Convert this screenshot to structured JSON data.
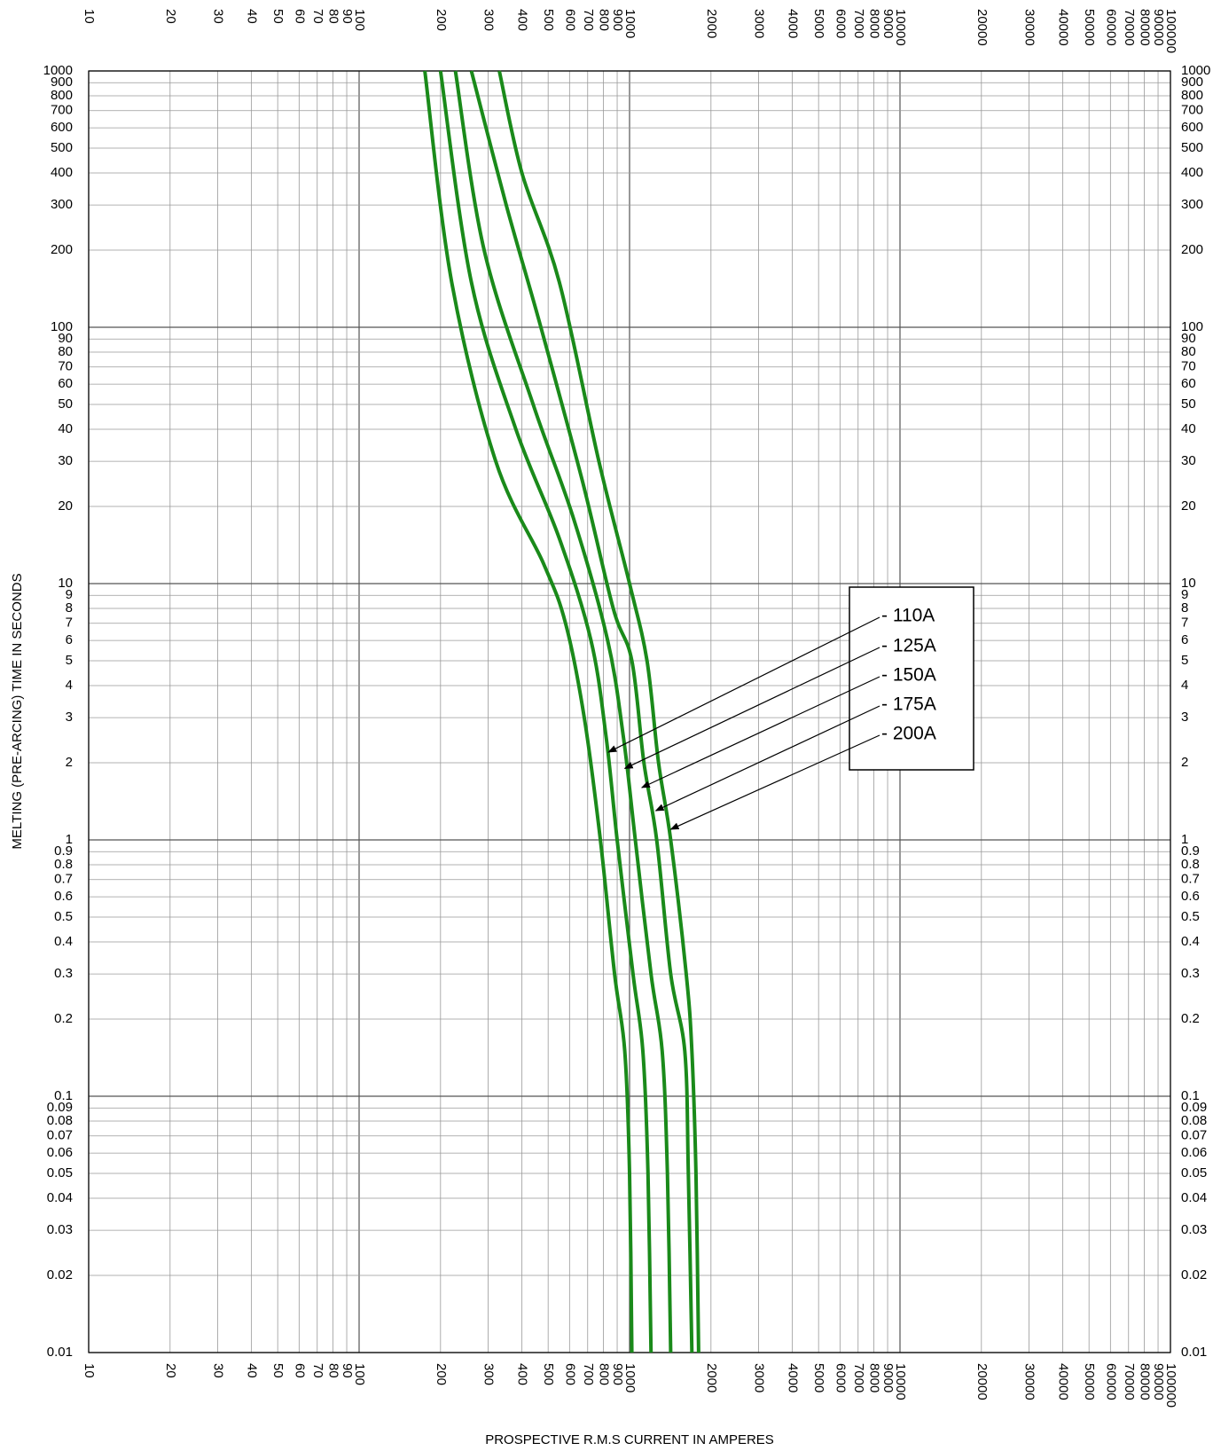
{
  "chart_data": {
    "type": "line",
    "xlabel": "PROSPECTIVE R.M.S CURRENT IN AMPERES",
    "ylabel": "MELTING (PRE-ARCING) TIME IN SECONDS",
    "x_scale": "log",
    "y_scale": "log",
    "xlim": [
      10,
      100000
    ],
    "ylim": [
      0.01,
      1000
    ],
    "grid": true,
    "x_tick_labels": [
      "10",
      "20",
      "30",
      "40",
      "50",
      "60",
      "70",
      "80",
      "90",
      "100",
      "200",
      "300",
      "400",
      "500",
      "600",
      "700",
      "800",
      "900",
      "1000",
      "2000",
      "3000",
      "4000",
      "5000",
      "6000",
      "7000",
      "8000",
      "9000",
      "10000",
      "20000",
      "30000",
      "40000",
      "50000",
      "60000",
      "70000",
      "80000",
      "90000",
      "100000"
    ],
    "y_tick_labels": [
      "0.01",
      "0.02",
      "0.03",
      "0.04",
      "0.05",
      "0.06",
      "0.07",
      "0.08",
      "0.09",
      "0.1",
      "0.2",
      "0.3",
      "0.4",
      "0.5",
      "0.6",
      "0.7",
      "0.8",
      "0.9",
      "1",
      "2",
      "3",
      "4",
      "5",
      "6",
      "7",
      "8",
      "9",
      "10",
      "20",
      "30",
      "40",
      "50",
      "60",
      "70",
      "80",
      "90",
      "100",
      "200",
      "300",
      "400",
      "500",
      "600",
      "700",
      "800",
      "900",
      "1000"
    ],
    "line_color": "#1a8a1a",
    "legend_position": "center-right",
    "series": [
      {
        "name": "- 110A",
        "points": [
          [
            175,
            1000
          ],
          [
            220,
            150
          ],
          [
            320,
            30
          ],
          [
            480,
            12
          ],
          [
            580,
            7
          ],
          [
            680,
            3
          ],
          [
            780,
            1
          ],
          [
            880,
            0.3
          ],
          [
            960,
            0.15
          ],
          [
            1000,
            0.05
          ],
          [
            1020,
            0.01
          ]
        ]
      },
      {
        "name": "- 125A",
        "points": [
          [
            200,
            1000
          ],
          [
            260,
            150
          ],
          [
            380,
            40
          ],
          [
            550,
            15
          ],
          [
            720,
            6
          ],
          [
            820,
            2.5
          ],
          [
            900,
            1
          ],
          [
            1030,
            0.3
          ],
          [
            1120,
            0.15
          ],
          [
            1170,
            0.05
          ],
          [
            1200,
            0.01
          ]
        ]
      },
      {
        "name": "- 150A",
        "points": [
          [
            227,
            1000
          ],
          [
            290,
            200
          ],
          [
            440,
            50
          ],
          [
            620,
            18
          ],
          [
            830,
            6
          ],
          [
            950,
            2.5
          ],
          [
            1050,
            1
          ],
          [
            1200,
            0.3
          ],
          [
            1320,
            0.15
          ],
          [
            1380,
            0.05
          ],
          [
            1420,
            0.01
          ]
        ]
      },
      {
        "name": "- 175A",
        "points": [
          [
            260,
            1000
          ],
          [
            350,
            300
          ],
          [
            470,
            100
          ],
          [
            670,
            25
          ],
          [
            870,
            8
          ],
          [
            1020,
            5
          ],
          [
            1130,
            2
          ],
          [
            1260,
            1
          ],
          [
            1420,
            0.3
          ],
          [
            1600,
            0.15
          ],
          [
            1650,
            0.05
          ],
          [
            1700,
            0.01
          ]
        ]
      },
      {
        "name": "- 200A",
        "points": [
          [
            330,
            1000
          ],
          [
            400,
            400
          ],
          [
            550,
            150
          ],
          [
            770,
            30
          ],
          [
            1000,
            10
          ],
          [
            1160,
            5
          ],
          [
            1280,
            2
          ],
          [
            1420,
            1
          ],
          [
            1620,
            0.3
          ],
          [
            1700,
            0.15
          ],
          [
            1760,
            0.05
          ],
          [
            1800,
            0.01
          ]
        ]
      }
    ],
    "arrow_targets": [
      [
        835,
        2.2
      ],
      [
        960,
        1.9
      ],
      [
        1110,
        1.6
      ],
      [
        1250,
        1.3
      ],
      [
        1420,
        1.1
      ]
    ]
  }
}
